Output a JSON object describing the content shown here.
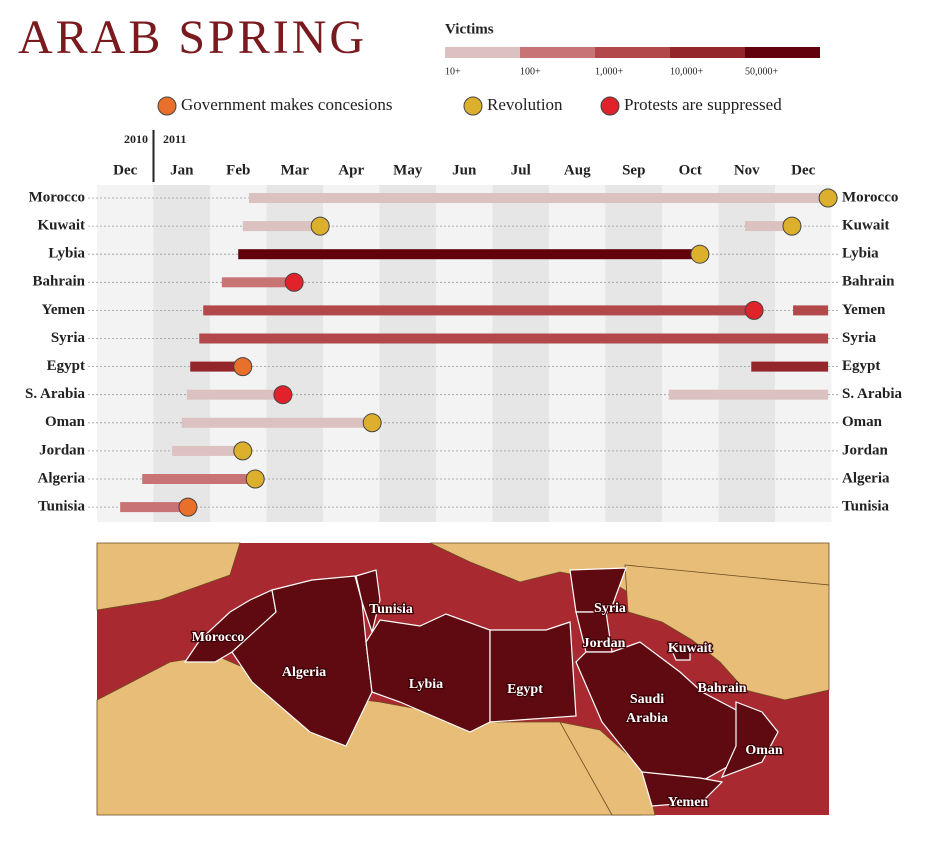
{
  "chart_data": {
    "type": "gantt",
    "title": "ARAB SPRING",
    "legend_title": "Victims",
    "levels": [
      {
        "label": "10+",
        "color": "#dcc1c1"
      },
      {
        "label": "100+",
        "color": "#c97474"
      },
      {
        "label": "1,000+",
        "color": "#b2484a"
      },
      {
        "label": "10,000+",
        "color": "#94252b"
      },
      {
        "label": "50,000+",
        "color": "#62000b"
      }
    ],
    "event_types": [
      {
        "name": "Government makes concesions",
        "color": "#e8702a"
      },
      {
        "name": "Revolution",
        "color": "#dcb02c"
      },
      {
        "name": "Protests are suppressed",
        "color": "#e0222a"
      }
    ],
    "year_labels": [
      "2010",
      "2011"
    ],
    "categories": [
      "Dec",
      "Jan",
      "Feb",
      "Mar",
      "Apr",
      "May",
      "Jun",
      "Jul",
      "Aug",
      "Sep",
      "Oct",
      "Nov",
      "Dec"
    ],
    "xlim": [
      0,
      13
    ],
    "rows": [
      {
        "name": "Morocco",
        "segments": [
          {
            "start": 2.69,
            "end": 12.94,
            "color": "#dcc1c1"
          }
        ],
        "events": [
          {
            "x": 12.94,
            "color": "#dcb02c"
          }
        ]
      },
      {
        "name": "Kuwait",
        "segments": [
          {
            "start": 2.58,
            "end": 3.95,
            "color": "#dcc1c1"
          },
          {
            "start": 11.47,
            "end": 12.3,
            "color": "#dcc1c1"
          }
        ],
        "events": [
          {
            "x": 3.95,
            "color": "#dcb02c"
          },
          {
            "x": 12.3,
            "color": "#dcb02c"
          }
        ]
      },
      {
        "name": "Lybia",
        "segments": [
          {
            "start": 2.5,
            "end": 10.67,
            "color": "#62000b"
          }
        ],
        "events": [
          {
            "x": 10.67,
            "color": "#dcb02c"
          }
        ]
      },
      {
        "name": "Bahrain",
        "segments": [
          {
            "start": 2.21,
            "end": 3.49,
            "color": "#c97474"
          }
        ],
        "events": [
          {
            "x": 3.49,
            "color": "#e0222a"
          }
        ]
      },
      {
        "name": "Yemen",
        "segments": [
          {
            "start": 1.88,
            "end": 11.63,
            "color": "#b2484a"
          },
          {
            "start": 12.32,
            "end": 12.94,
            "color": "#b2484a"
          }
        ],
        "events": [
          {
            "x": 11.63,
            "color": "#e0222a"
          }
        ]
      },
      {
        "name": "Syria",
        "segments": [
          {
            "start": 1.81,
            "end": 12.94,
            "color": "#b2484a"
          }
        ],
        "events": []
      },
      {
        "name": "Egypt",
        "segments": [
          {
            "start": 1.65,
            "end": 2.58,
            "color": "#94252b"
          },
          {
            "start": 11.58,
            "end": 12.94,
            "color": "#94252b"
          }
        ],
        "events": [
          {
            "x": 2.58,
            "color": "#e8702a"
          }
        ]
      },
      {
        "name": "S. Arabia",
        "segments": [
          {
            "start": 1.59,
            "end": 3.29,
            "color": "#dcc1c1"
          },
          {
            "start": 10.12,
            "end": 12.94,
            "color": "#dcc1c1"
          }
        ],
        "events": [
          {
            "x": 3.29,
            "color": "#e0222a"
          }
        ]
      },
      {
        "name": "Oman",
        "segments": [
          {
            "start": 1.5,
            "end": 4.87,
            "color": "#dcc1c1"
          }
        ],
        "events": [
          {
            "x": 4.87,
            "color": "#dcb02c"
          }
        ]
      },
      {
        "name": "Jordan",
        "segments": [
          {
            "start": 1.33,
            "end": 2.58,
            "color": "#dcc1c1"
          }
        ],
        "events": [
          {
            "x": 2.58,
            "color": "#dcb02c"
          }
        ]
      },
      {
        "name": "Algeria",
        "segments": [
          {
            "start": 0.8,
            "end": 2.8,
            "color": "#c97474"
          }
        ],
        "events": [
          {
            "x": 2.8,
            "color": "#dcb02c"
          }
        ]
      },
      {
        "name": "Tunisia",
        "segments": [
          {
            "start": 0.41,
            "end": 1.61,
            "color": "#c97474"
          }
        ],
        "events": [
          {
            "x": 1.61,
            "color": "#e8702a"
          }
        ]
      }
    ]
  },
  "map": {
    "labels": [
      "Morocco",
      "Algeria",
      "Tunisia",
      "Lybia",
      "Egypt",
      "Syria",
      "Jordan",
      "Kuwait",
      "Bahrain",
      "Saudi",
      "Arabia",
      "Oman",
      "Yemen"
    ]
  }
}
